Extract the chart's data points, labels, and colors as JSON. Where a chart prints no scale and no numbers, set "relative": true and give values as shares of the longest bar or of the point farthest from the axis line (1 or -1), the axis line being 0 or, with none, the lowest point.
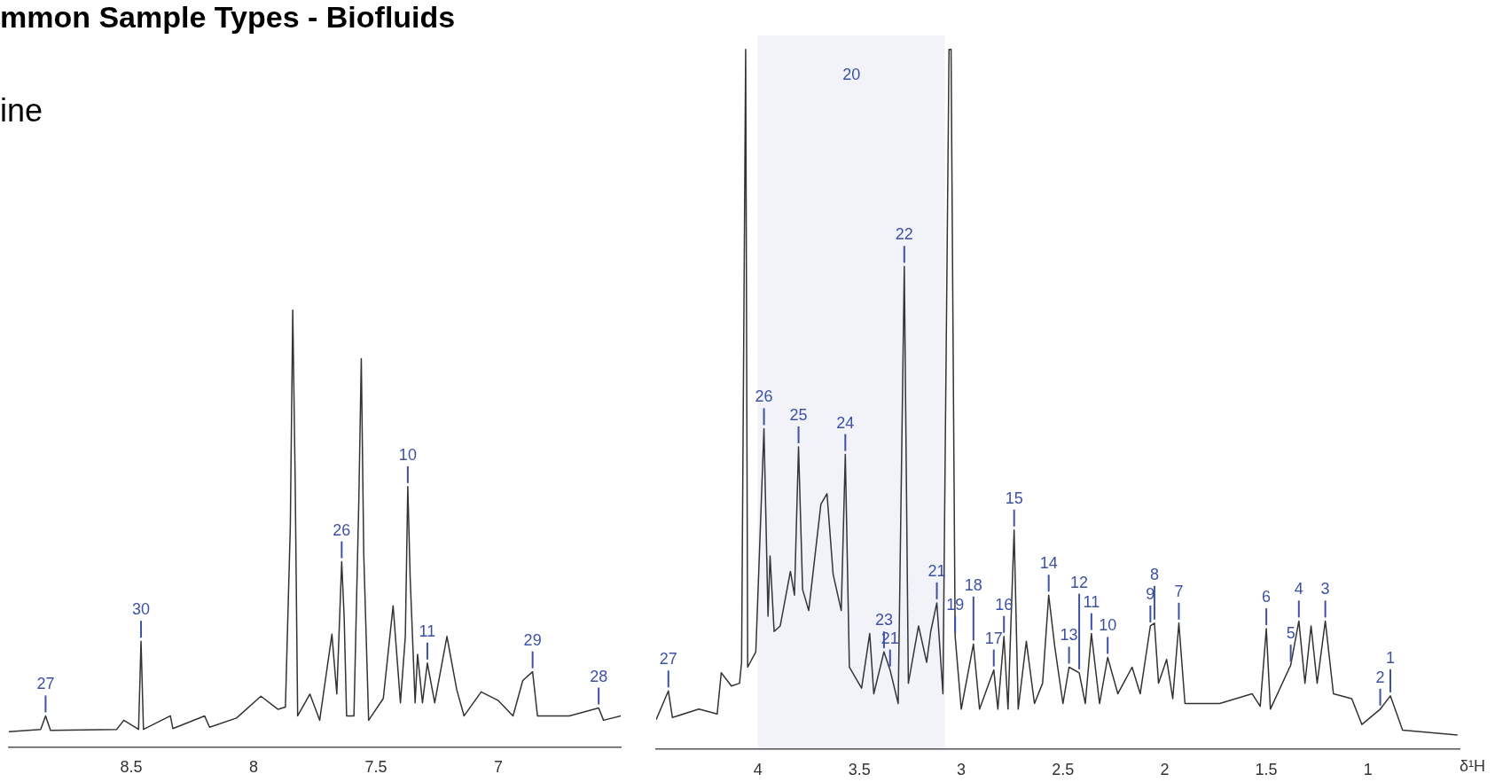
{
  "chart_data": [
    {
      "type": "line",
      "title": "mmon Sample Types - Biofluids",
      "subtitle": "ine",
      "relative": true,
      "xlim": [
        9.0,
        6.5
      ],
      "xticks": [
        {
          "value": 8.5,
          "label": "8.5"
        },
        8,
        {
          "value": 7.5,
          "label": "7.5"
        },
        7
      ],
      "series": [
        {
          "color": "#333333",
          "x": [
            9.0,
            8.87,
            8.85,
            8.83,
            8.56,
            8.53,
            8.47,
            8.46,
            8.45,
            8.34,
            8.33,
            8.2,
            8.18,
            8.07,
            7.97,
            7.9,
            7.87,
            7.85,
            7.84,
            7.83,
            7.82,
            7.77,
            7.73,
            7.68,
            7.66,
            7.64,
            7.63,
            7.62,
            7.59,
            7.57,
            7.56,
            7.55,
            7.53,
            7.47,
            7.43,
            7.4,
            7.38,
            7.37,
            7.36,
            7.34,
            7.33,
            7.31,
            7.29,
            7.26,
            7.21,
            7.17,
            7.14,
            7.07,
            7.0,
            6.94,
            6.9,
            6.86,
            6.84,
            6.71,
            6.59,
            6.57,
            6.5
          ],
          "values": [
            0.035,
            0.04,
            0.071,
            0.038,
            0.04,
            0.061,
            0.04,
            0.242,
            0.04,
            0.071,
            0.042,
            0.071,
            0.045,
            0.066,
            0.116,
            0.086,
            0.091,
            0.505,
            1.0,
            0.606,
            0.071,
            0.121,
            0.061,
            0.258,
            0.121,
            0.424,
            0.298,
            0.071,
            0.071,
            0.566,
            0.889,
            0.444,
            0.061,
            0.111,
            0.323,
            0.101,
            0.253,
            0.596,
            0.384,
            0.101,
            0.212,
            0.101,
            0.192,
            0.101,
            0.253,
            0.131,
            0.071,
            0.126,
            0.106,
            0.071,
            0.152,
            0.172,
            0.071,
            0.071,
            0.089,
            0.061,
            0.071
          ]
        }
      ],
      "annotations": [
        {
          "text": "27",
          "x": 8.85,
          "y": 0.071
        },
        {
          "text": "30",
          "x": 8.46,
          "y": 0.242
        },
        {
          "text": "26",
          "x": 7.64,
          "y": 0.424
        },
        {
          "text": "10",
          "x": 7.37,
          "y": 0.596
        },
        {
          "text": "11",
          "x": 7.29,
          "y": 0.192
        },
        {
          "text": "29",
          "x": 6.86,
          "y": 0.172
        },
        {
          "text": "28",
          "x": 6.59,
          "y": 0.089
        }
      ]
    },
    {
      "type": "line",
      "xlabel": "δ¹H",
      "relative": true,
      "xlim": [
        4.5,
        0.55
      ],
      "xticks": [
        4,
        {
          "value": 3.5,
          "label": "3.5"
        },
        3,
        {
          "value": 2.5,
          "label": "2.5"
        },
        2,
        {
          "value": 1.5,
          "label": "1.5"
        },
        1
      ],
      "series": [
        {
          "color": "#333333",
          "x": [
            4.5,
            4.44,
            4.42,
            4.29,
            4.2,
            4.18,
            4.13,
            4.09,
            4.08,
            4.06,
            4.05,
            4.01,
            3.97,
            3.95,
            3.94,
            3.92,
            3.89,
            3.84,
            3.82,
            3.8,
            3.78,
            3.75,
            3.69,
            3.66,
            3.63,
            3.59,
            3.57,
            3.55,
            3.49,
            3.45,
            3.43,
            3.38,
            3.35,
            3.31,
            3.28,
            3.26,
            3.21,
            3.17,
            3.15,
            3.12,
            3.09,
            3.06,
            3.05,
            3.03,
            3.0,
            2.94,
            2.91,
            2.84,
            2.82,
            2.79,
            2.77,
            2.74,
            2.72,
            2.68,
            2.64,
            2.6,
            2.57,
            2.54,
            2.5,
            2.47,
            2.42,
            2.39,
            2.36,
            2.32,
            2.28,
            2.23,
            2.16,
            2.12,
            2.07,
            2.05,
            2.03,
            1.99,
            1.96,
            1.93,
            1.9,
            1.73,
            1.57,
            1.53,
            1.5,
            1.48,
            1.38,
            1.34,
            1.31,
            1.28,
            1.25,
            1.21,
            1.17,
            1.08,
            1.03,
            0.94,
            0.89,
            0.83,
            0.56
          ],
          "values": [
            0.042,
            0.083,
            0.045,
            0.057,
            0.05,
            0.109,
            0.09,
            0.094,
            0.124,
            1.0,
            0.117,
            0.139,
            0.458,
            0.19,
            0.276,
            0.168,
            0.176,
            0.254,
            0.22,
            0.432,
            0.228,
            0.198,
            0.35,
            0.365,
            0.25,
            0.198,
            0.421,
            0.117,
            0.087,
            0.165,
            0.079,
            0.139,
            0.113,
            0.065,
            0.69,
            0.094,
            0.176,
            0.124,
            0.168,
            0.209,
            0.079,
            1.0,
            1.0,
            0.161,
            0.057,
            0.15,
            0.057,
            0.113,
            0.057,
            0.161,
            0.057,
            0.313,
            0.057,
            0.154,
            0.065,
            0.094,
            0.22,
            0.146,
            0.065,
            0.117,
            0.109,
            0.065,
            0.165,
            0.065,
            0.131,
            0.079,
            0.117,
            0.079,
            0.176,
            0.18,
            0.094,
            0.128,
            0.072,
            0.18,
            0.065,
            0.065,
            0.079,
            0.061,
            0.172,
            0.057,
            0.12,
            0.183,
            0.094,
            0.176,
            0.094,
            0.183,
            0.079,
            0.072,
            0.035,
            0.057,
            0.076,
            0.027,
            0.02
          ]
        }
      ],
      "bands": [
        {
          "axis": "x",
          "from": 4.0,
          "to": 3.08,
          "label": "20",
          "color": "#3f51a3"
        }
      ],
      "annotations": [
        {
          "text": "22",
          "x": 3.28,
          "y": 0.69
        },
        {
          "text": "26",
          "x": 3.97,
          "y": 0.458
        },
        {
          "text": "19",
          "x": 3.03,
          "y": 0.161
        },
        {
          "text": "11",
          "x": 2.36,
          "y": 0.165
        },
        {
          "text": "25",
          "x": 3.8,
          "y": 0.432
        },
        {
          "text": "24",
          "x": 3.57,
          "y": 0.421
        },
        {
          "text": "27",
          "x": 4.44,
          "y": 0.083
        },
        {
          "text": "23",
          "x": 3.38,
          "y": 0.139
        },
        {
          "text": "21",
          "x": 3.35,
          "y": 0.113
        },
        {
          "text": "21",
          "x": 3.12,
          "y": 0.209
        },
        {
          "text": "18",
          "x": 2.94,
          "y": 0.15
        },
        {
          "text": "17",
          "x": 2.84,
          "y": 0.113
        },
        {
          "text": "16",
          "x": 2.79,
          "y": 0.161
        },
        {
          "text": "15",
          "x": 2.74,
          "y": 0.313
        },
        {
          "text": "14",
          "x": 2.57,
          "y": 0.22
        },
        {
          "text": "13",
          "x": 2.47,
          "y": 0.117
        },
        {
          "text": "12",
          "x": 2.42,
          "y": 0.109
        },
        {
          "text": "10",
          "x": 2.28,
          "y": 0.131
        },
        {
          "text": "9",
          "x": 2.07,
          "y": 0.176
        },
        {
          "text": "8",
          "x": 2.05,
          "y": 0.18
        },
        {
          "text": "7",
          "x": 1.93,
          "y": 0.18
        },
        {
          "text": "6",
          "x": 1.5,
          "y": 0.172
        },
        {
          "text": "5",
          "x": 1.38,
          "y": 0.12
        },
        {
          "text": "4",
          "x": 1.34,
          "y": 0.183
        },
        {
          "text": "3",
          "x": 1.21,
          "y": 0.183
        },
        {
          "text": "2",
          "x": 0.94,
          "y": 0.057
        },
        {
          "text": "1",
          "x": 0.89,
          "y": 0.076
        }
      ]
    }
  ]
}
